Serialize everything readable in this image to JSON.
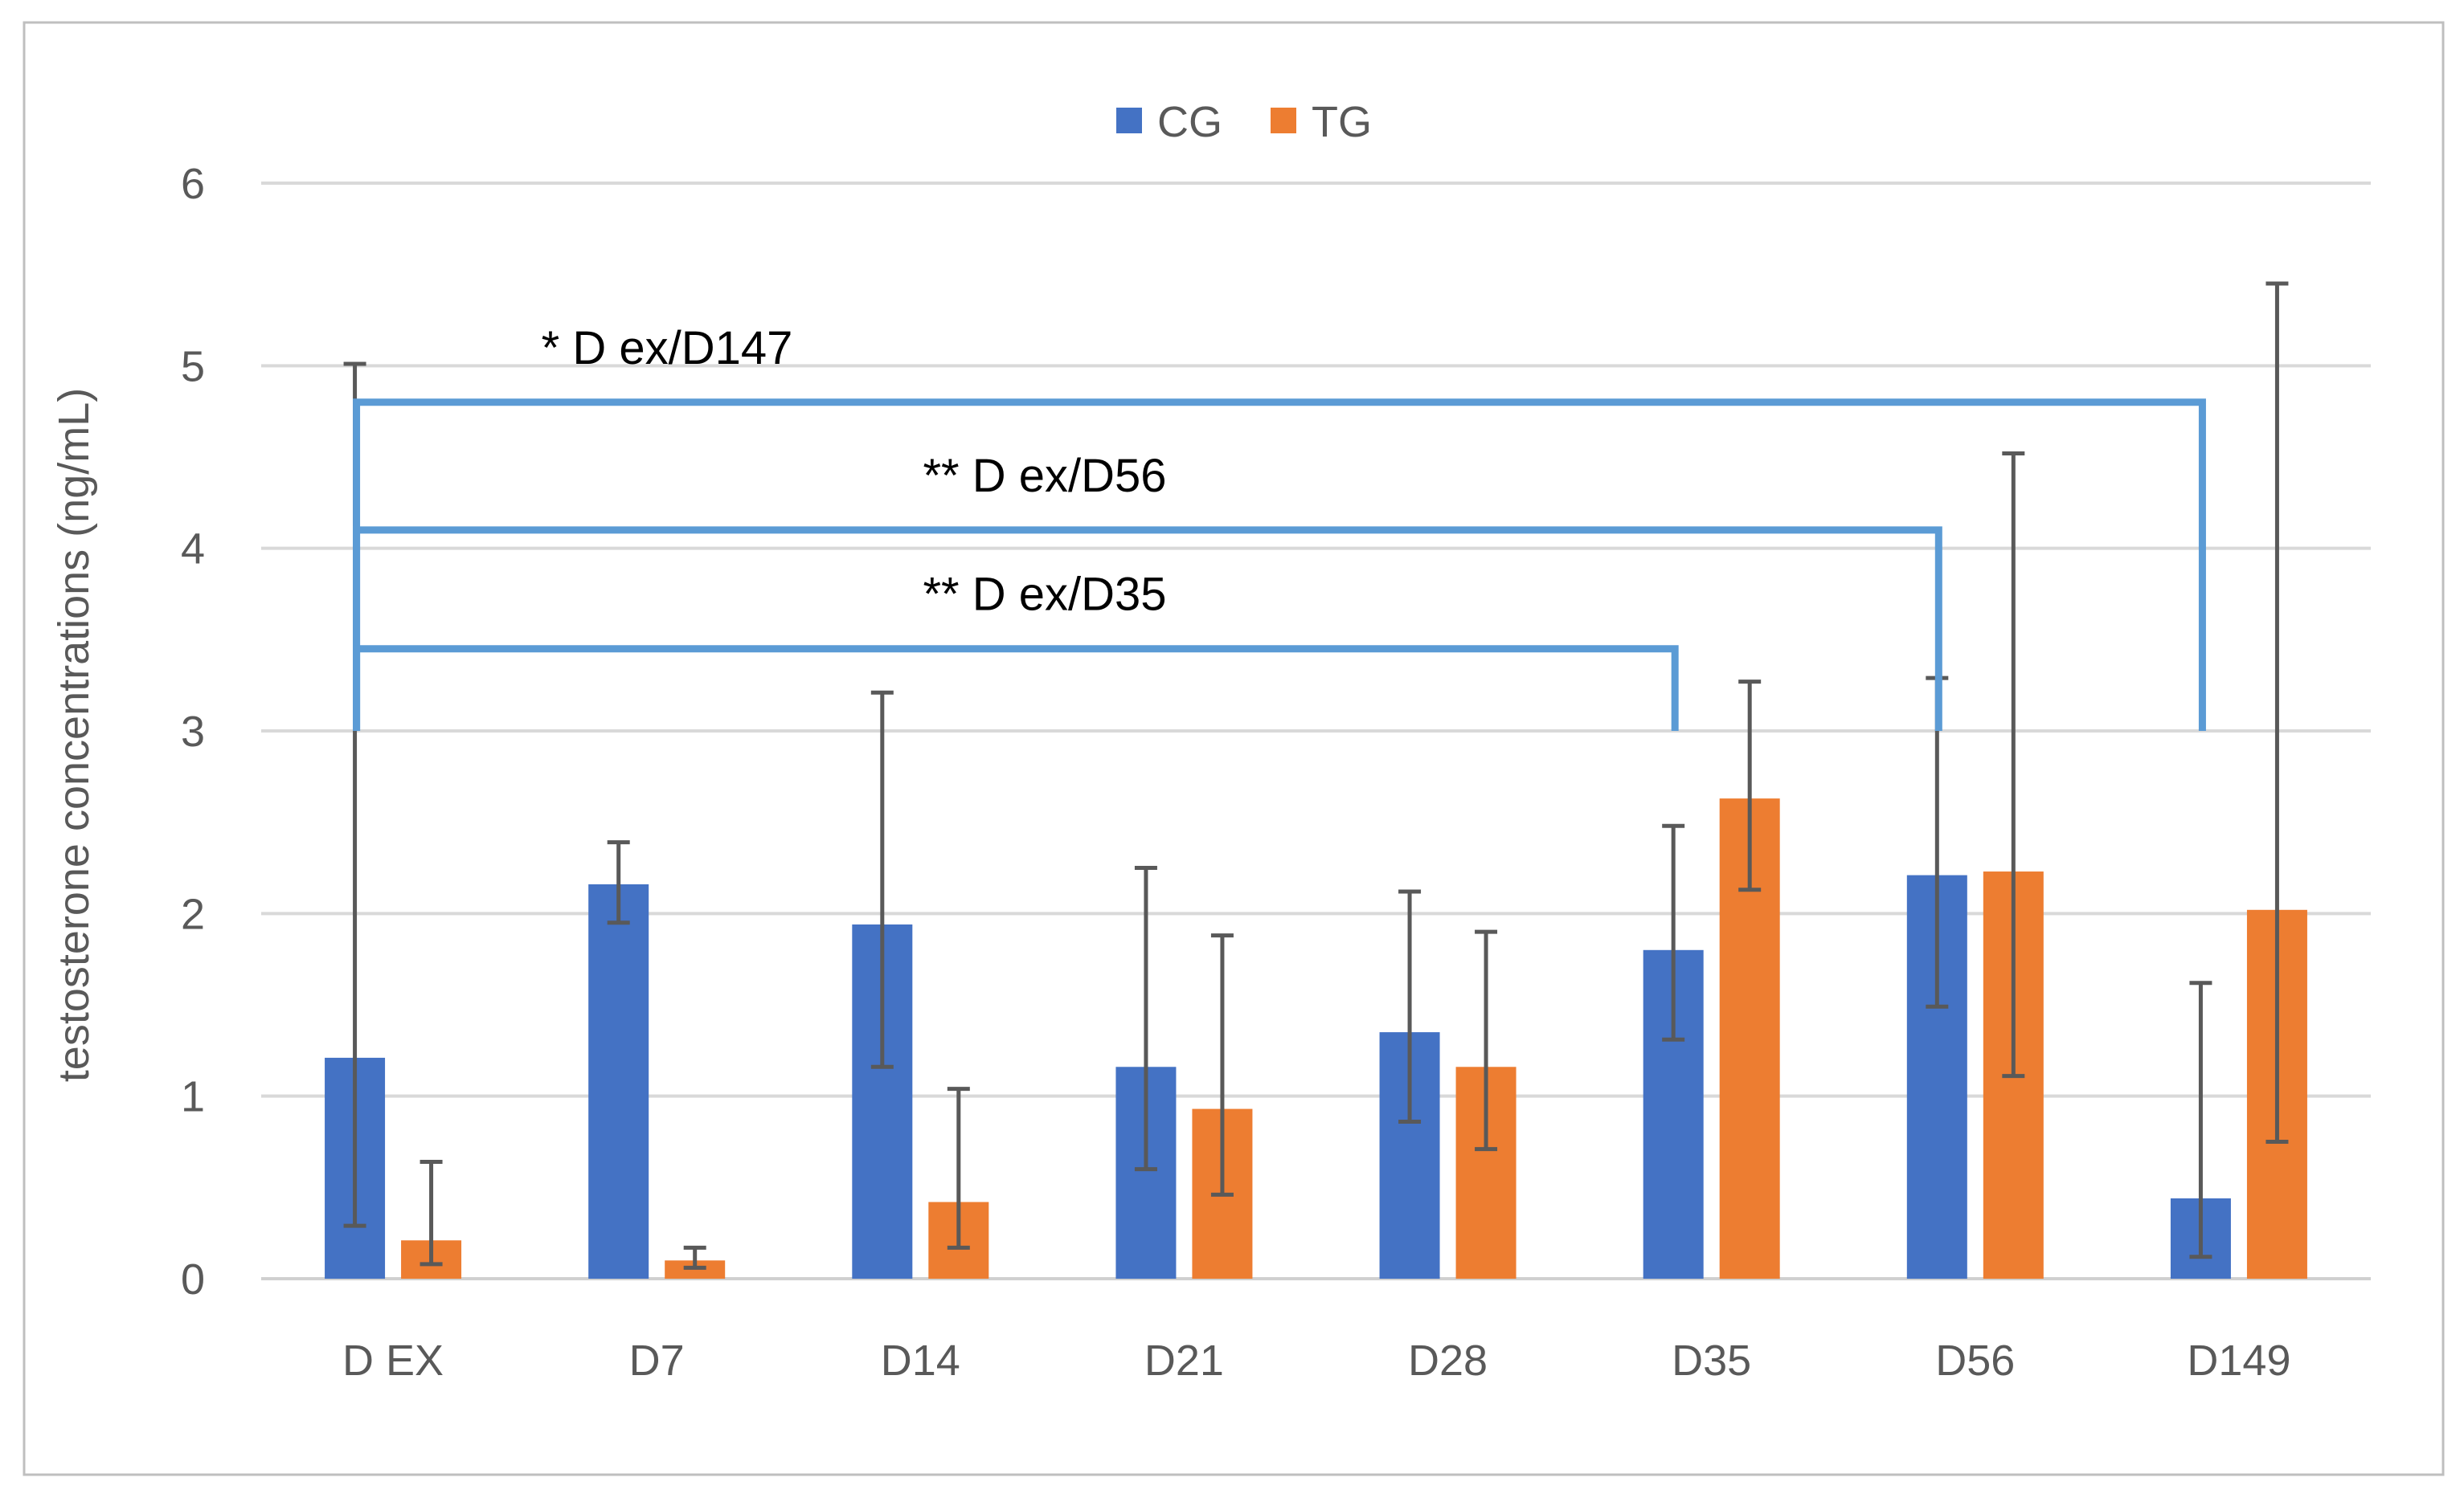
{
  "chart_data": {
    "type": "bar",
    "title": "",
    "xlabel": "",
    "ylabel": "testosterone concentrations (ng/mL)",
    "ylim": [
      0,
      6
    ],
    "yticks": [
      0,
      1,
      2,
      3,
      4,
      5,
      6
    ],
    "grid": true,
    "legend_position": "top-center",
    "categories": [
      "D EX",
      "D7",
      "D14",
      "D21",
      "D28",
      "D35",
      "D56",
      "D149"
    ],
    "series": [
      {
        "name": "CG",
        "color": "#4472C4",
        "values": [
          1.21,
          2.16,
          1.94,
          1.16,
          1.35,
          1.8,
          2.21,
          0.44
        ],
        "error_low": [
          0.29,
          1.95,
          1.16,
          0.6,
          0.86,
          1.31,
          1.49,
          0.12
        ],
        "error_high": [
          5.01,
          2.39,
          3.21,
          2.25,
          2.12,
          2.48,
          3.29,
          1.62
        ]
      },
      {
        "name": "TG",
        "color": "#ED7D31",
        "values": [
          0.21,
          0.1,
          0.42,
          0.93,
          1.16,
          2.63,
          2.23,
          2.02
        ],
        "error_low": [
          0.08,
          0.06,
          0.17,
          0.46,
          0.71,
          2.13,
          1.11,
          0.75
        ],
        "error_high": [
          0.64,
          0.17,
          1.04,
          1.88,
          1.9,
          3.27,
          4.52,
          5.45
        ]
      }
    ],
    "error_bar_color": "#595959",
    "brackets": [
      {
        "label": "* D ex/D147",
        "from": "D EX",
        "to": "D149",
        "level": 4.8,
        "drop_to": 3.0
      },
      {
        "label": "** D ex/D56",
        "from": "D EX",
        "to": "D56",
        "level": 4.1,
        "drop_to": 3.0
      },
      {
        "label": "** D ex/D35",
        "from": "D EX",
        "to": "D35",
        "level": 3.45,
        "drop_to": 3.0
      }
    ],
    "bracket_color": "#5B9BD5"
  }
}
